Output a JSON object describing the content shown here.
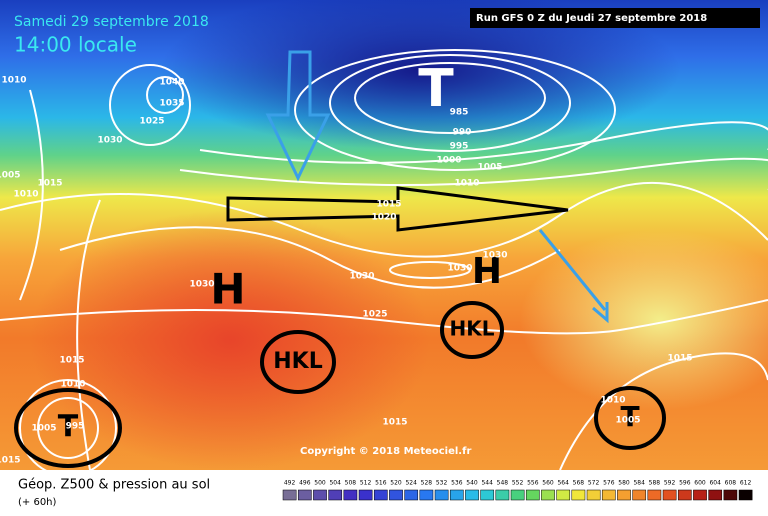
{
  "header": {
    "date": "Samedi 29 septembre 2018",
    "time": "14:00 locale",
    "run": "Run GFS 0 Z du Jeudi 27 septembre 2018"
  },
  "systems": [
    "T",
    "H",
    "H",
    "HKL",
    "HKL",
    "T",
    "T"
  ],
  "isobar_labels": [
    "1010",
    "1040",
    "1035",
    "1025",
    "1030",
    "1005",
    "1015",
    "1010",
    "985",
    "990",
    "995",
    "1000",
    "1005",
    "1010",
    "1015",
    "1020",
    "1030",
    "1030",
    "1030",
    "1030",
    "1025",
    "1015",
    "1010",
    "1005",
    "995",
    "1015",
    "1010",
    "1005",
    "1015",
    "1015"
  ],
  "copyright": "Copyright © 2018 Meteociel.fr",
  "footer": {
    "title": "Géop. Z500 & pression au sol",
    "lead": "(+ 60h)"
  },
  "legend": {
    "scale": [
      492,
      496,
      500,
      504,
      508,
      512,
      516,
      520,
      524,
      528,
      532,
      536,
      540,
      544,
      548,
      552,
      556,
      560,
      564,
      568,
      572,
      576,
      580,
      584,
      588,
      592,
      596,
      600,
      604,
      608,
      612
    ]
  }
}
